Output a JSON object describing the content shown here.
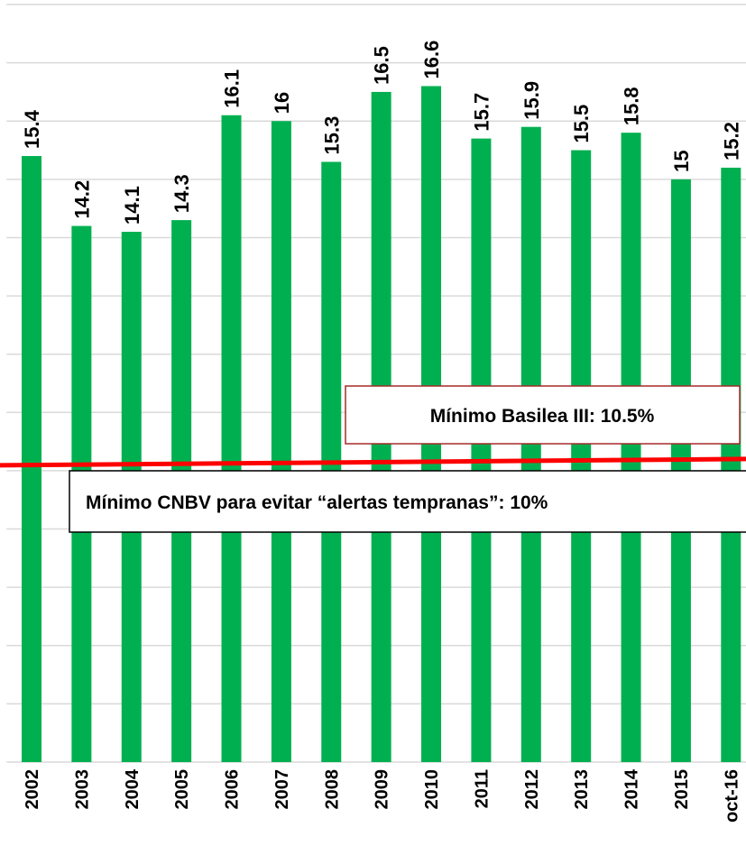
{
  "chart_data": {
    "type": "bar",
    "categories": [
      "2002",
      "2003",
      "2004",
      "2005",
      "2006",
      "2007",
      "2008",
      "2009",
      "2010",
      "2011",
      "2012",
      "2013",
      "2014",
      "2015",
      "oct-16"
    ],
    "values": [
      15.4,
      14.2,
      14.1,
      14.3,
      16.1,
      16,
      15.3,
      16.5,
      16.6,
      15.7,
      15.9,
      15.5,
      15.8,
      15,
      15.2
    ],
    "color": "#00b050",
    "ylim": [
      5,
      18
    ],
    "yticks": [
      5,
      6,
      7,
      8,
      9,
      10,
      11,
      12,
      13,
      14,
      15,
      16,
      17,
      18
    ],
    "grid": true,
    "reference_line": {
      "value": 10,
      "color": "#ff0000"
    },
    "annotations": [
      "Mínimo Basilea III: 10.5%",
      "Mínimo CNBV para evitar “alertas tempranas”: 10%"
    ]
  }
}
